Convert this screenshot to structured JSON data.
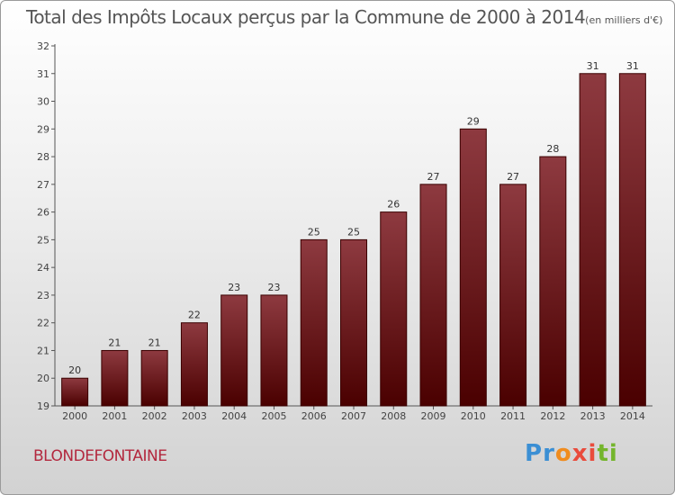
{
  "title": "Total des Impôts Locaux perçus par la Commune de 2000 à 2014",
  "title_unit": "(en milliers d'€)",
  "commune_name": "BLONDEFONTAINE",
  "logo": {
    "text": "Proxiti",
    "colors": [
      "#3b8fd4",
      "#f08c1e",
      "#e94b3c",
      "#74b52c"
    ]
  },
  "colors": {
    "bar_top": "#8e3a40",
    "bar_bottom": "#4a0000",
    "bar_stroke": "#3a0000",
    "axis": "#555555",
    "commune": "#b3283e"
  },
  "chart_data": {
    "type": "bar",
    "title": "Total des Impôts Locaux perçus par la Commune de 2000 à 2014",
    "xlabel": "",
    "ylabel": "",
    "categories": [
      "2000",
      "2001",
      "2002",
      "2003",
      "2004",
      "2005",
      "2006",
      "2007",
      "2008",
      "2009",
      "2010",
      "2011",
      "2012",
      "2013",
      "2014"
    ],
    "values": [
      20,
      21,
      21,
      22,
      23,
      23,
      25,
      25,
      26,
      27,
      29,
      27,
      28,
      31,
      31
    ],
    "data_labels": [
      "20",
      "21",
      "21",
      "22",
      "23",
      "23",
      "25",
      "25",
      "26",
      "27",
      "29",
      "27",
      "28",
      "31",
      "31"
    ],
    "ylim": [
      19,
      32
    ],
    "yticks": [
      19,
      20,
      21,
      22,
      23,
      24,
      25,
      26,
      27,
      28,
      29,
      30,
      31,
      32
    ],
    "grid": false,
    "legend": "none"
  }
}
